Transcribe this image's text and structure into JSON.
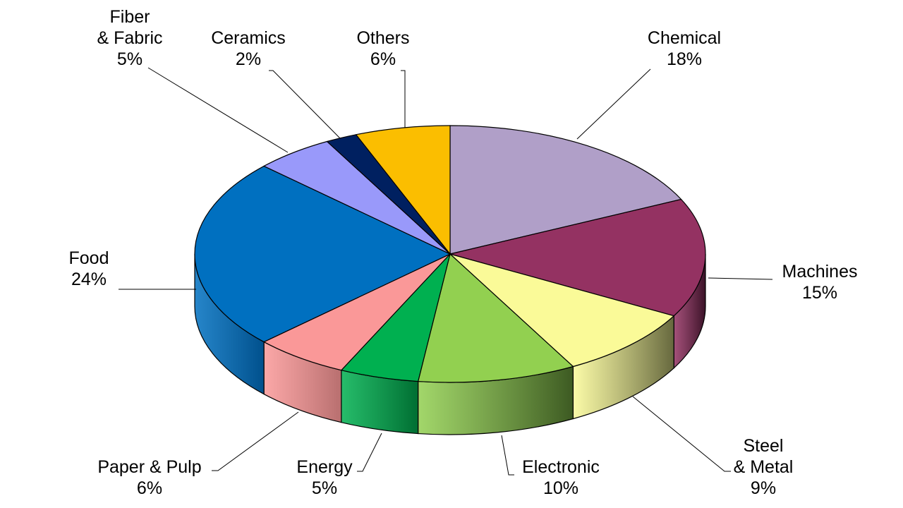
{
  "chart_data": {
    "type": "pie",
    "title": "",
    "style": "3d-exploded-off",
    "slices": [
      {
        "name": "Chemical",
        "label_lines": [
          "Chemical",
          "18%"
        ],
        "value": 18,
        "color": "#B09FC8",
        "side_color": "#5a4a6e"
      },
      {
        "name": "Machines",
        "label_lines": [
          "Machines",
          "15%"
        ],
        "value": 15,
        "color": "#943262",
        "side_color": "#3b1228"
      },
      {
        "name": "Steel & Metal",
        "label_lines": [
          "Steel",
          "& Metal",
          "9%"
        ],
        "value": 9,
        "color": "#FAFA98",
        "side_color": "#66683e"
      },
      {
        "name": "Electronic",
        "label_lines": [
          "Electronic",
          "10%"
        ],
        "value": 10,
        "color": "#92D050",
        "side_color": "#3d5a22"
      },
      {
        "name": "Energy",
        "label_lines": [
          "Energy",
          "5%"
        ],
        "value": 5,
        "color": "#00B050",
        "side_color": "#006e32"
      },
      {
        "name": "Paper & Pulp",
        "label_lines": [
          "Paper & Pulp",
          "6%"
        ],
        "value": 6,
        "color": "#FA9898",
        "side_color": "#b86f6f"
      },
      {
        "name": "Food",
        "label_lines": [
          "Food",
          "24%"
        ],
        "value": 24,
        "color": "#0070C0",
        "side_color": "#00508c"
      },
      {
        "name": "Fiber & Fabric",
        "label_lines": [
          "Fiber",
          "& Fabric",
          "5%"
        ],
        "value": 5,
        "color": "#9999FA",
        "side_color": "#5c5cb0"
      },
      {
        "name": "Ceramics",
        "label_lines": [
          "Ceramics",
          "2%"
        ],
        "value": 2,
        "color": "#002060",
        "side_color": "#001540"
      },
      {
        "name": "Others",
        "label_lines": [
          "Others",
          "6%"
        ],
        "value": 6,
        "color": "#FBBE00",
        "side_color": "#a57d00"
      }
    ]
  }
}
